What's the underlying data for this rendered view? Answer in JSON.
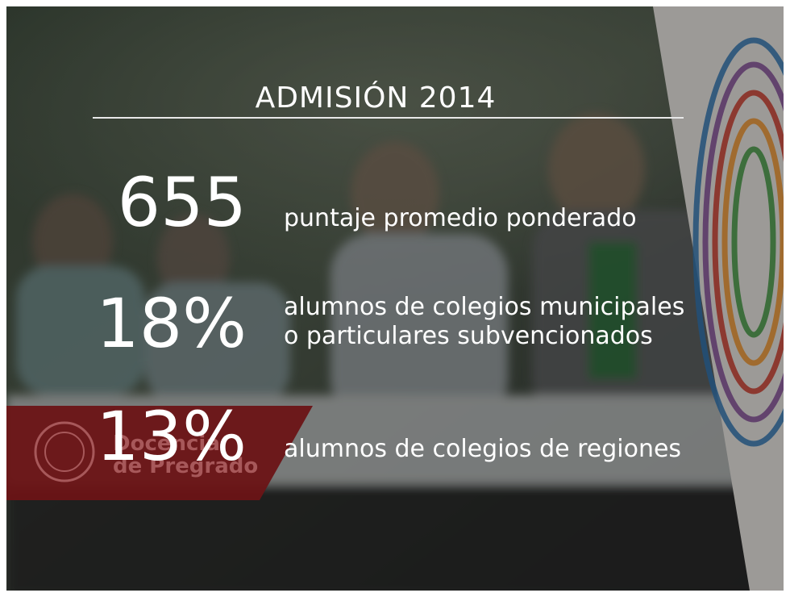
{
  "title": "ADMISIÓN 2014",
  "stats": [
    {
      "figure": "655",
      "lines": [
        "puntaje promedio ponderado"
      ]
    },
    {
      "figure": "18%",
      "lines": [
        "alumnos de colegios municipales",
        "o particulares subvencionados"
      ]
    },
    {
      "figure": "13%",
      "lines": [
        "alumnos de colegios de regiones"
      ]
    }
  ],
  "logo": {
    "lines": [
      "Docencia",
      "de Pregrado"
    ]
  }
}
